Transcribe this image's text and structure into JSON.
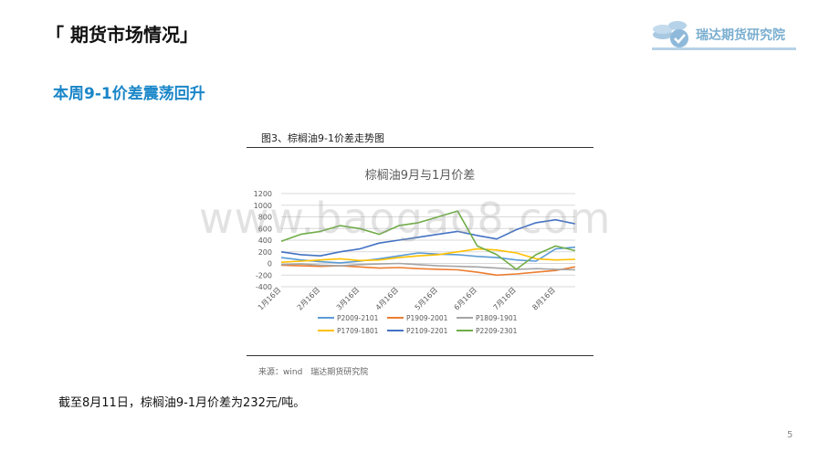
{
  "header": {
    "title": "「 期货市场情况」",
    "logo_text": "瑞达期货研究院"
  },
  "subtitle": "本周9-1价差震荡回升",
  "figure": {
    "caption": "图3、棕榈油9-1价差走势图",
    "source": "来源：wind　瑞达期货研究院"
  },
  "summary": "截至8月11日，棕榈油9-1月价差为232元/吨。",
  "page_number": "5",
  "watermark": "www.baogao8.com",
  "colors": {
    "P2009-2101": "#5b9bd5",
    "P1909-2001": "#ed7d31",
    "P1809-1901": "#a5a5a5",
    "P1709-1801": "#ffc000",
    "P2109-2201": "#4472c4",
    "P2209-2301": "#70ad47",
    "title_text": "#1a86c8",
    "grid": "#d9d9d9",
    "axis_text": "#595959"
  },
  "chart_data": {
    "type": "line",
    "title": "棕榈油9月与1月价差",
    "ylim": [
      -400,
      1200
    ],
    "yticks": [
      -400,
      -200,
      0,
      200,
      400,
      600,
      800,
      1000,
      1200
    ],
    "xticks": [
      "1月16日",
      "2月16日",
      "3月16日",
      "4月16日",
      "5月16日",
      "6月16日",
      "7月16日",
      "8月16日"
    ],
    "legend_position": "bottom",
    "grid": true,
    "x": [
      0,
      0.5,
      1,
      1.5,
      2,
      2.5,
      3,
      3.5,
      4,
      4.5,
      5,
      5.5,
      6,
      6.5,
      7,
      7.5
    ],
    "series": [
      {
        "name": "P2009-2101",
        "values": [
          100,
          60,
          30,
          10,
          40,
          80,
          130,
          180,
          160,
          150,
          120,
          100,
          60,
          40,
          250,
          280
        ]
      },
      {
        "name": "P1909-2001",
        "values": [
          -30,
          -40,
          -50,
          -40,
          -60,
          -80,
          -70,
          -90,
          -100,
          -110,
          -150,
          -200,
          -180,
          -150,
          -120,
          -60
        ]
      },
      {
        "name": "P1809-1901",
        "values": [
          -20,
          -10,
          -30,
          -40,
          -20,
          -10,
          0,
          -20,
          -40,
          -50,
          -60,
          -80,
          -100,
          -90,
          -100,
          -110
        ]
      },
      {
        "name": "P1709-1801",
        "values": [
          20,
          40,
          60,
          80,
          50,
          60,
          100,
          130,
          150,
          200,
          250,
          230,
          180,
          80,
          60,
          70
        ]
      },
      {
        "name": "P2109-2201",
        "values": [
          200,
          150,
          130,
          200,
          250,
          350,
          400,
          450,
          500,
          550,
          480,
          420,
          580,
          700,
          750,
          680
        ]
      },
      {
        "name": "P2209-2301",
        "values": [
          380,
          500,
          550,
          650,
          600,
          500,
          650,
          700,
          800,
          900,
          300,
          150,
          -100,
          150,
          300,
          220
        ]
      }
    ]
  }
}
